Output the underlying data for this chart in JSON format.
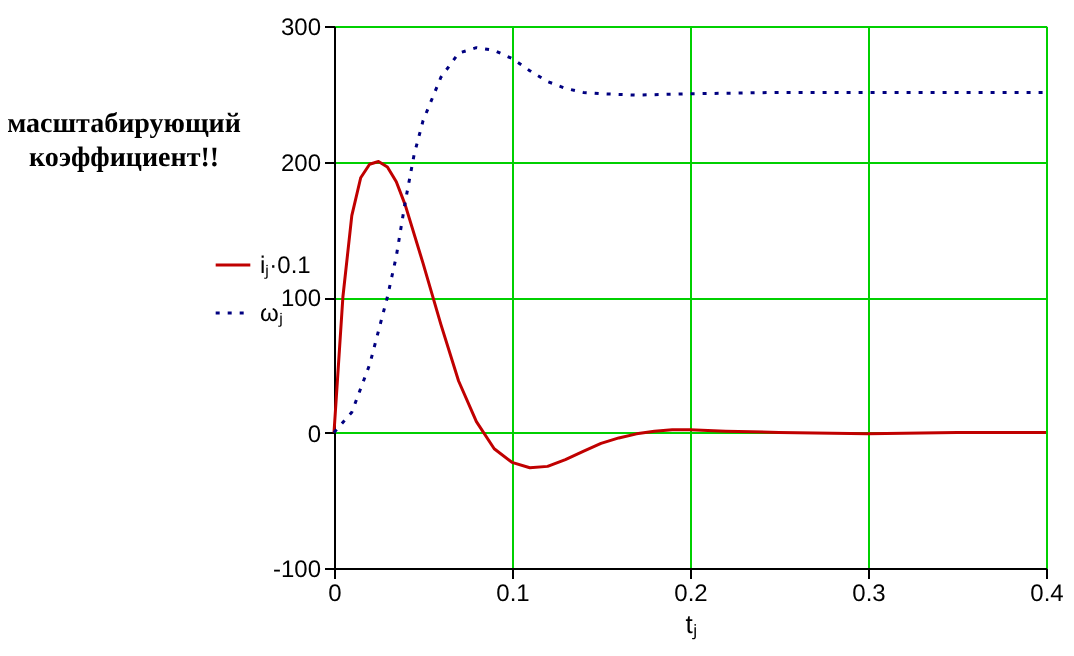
{
  "chart_data": {
    "type": "line",
    "xlabel": "tⱼ",
    "xlim": [
      0,
      0.4
    ],
    "xticks": [
      0,
      0.1,
      0.2,
      0.3,
      0.4
    ],
    "ylim": [
      -100,
      300
    ],
    "yticks": [
      -100,
      0,
      100,
      200,
      300
    ],
    "grid": true,
    "legend": "left",
    "marker": "none",
    "annotations": [
      "масштабирующий коэффициент!!"
    ],
    "series": [
      {
        "name": "iⱼ·0.1",
        "color": "#c00000",
        "line_style": "solid",
        "x": [
          0,
          0.002,
          0.005,
          0.01,
          0.015,
          0.02,
          0.025,
          0.03,
          0.035,
          0.04,
          0.05,
          0.06,
          0.07,
          0.08,
          0.09,
          0.1,
          0.11,
          0.12,
          0.13,
          0.14,
          0.15,
          0.16,
          0.17,
          0.18,
          0.19,
          0.2,
          0.22,
          0.25,
          0.3,
          0.35,
          0.4
        ],
        "values": [
          0,
          40,
          100,
          160,
          188,
          198,
          200,
          196,
          185,
          168,
          125,
          80,
          38,
          8,
          -12,
          -22,
          -26,
          -25,
          -20,
          -14,
          -8,
          -4,
          -1,
          1,
          2,
          2,
          1,
          0,
          -1,
          0,
          0
        ]
      },
      {
        "name": "ωⱼ",
        "color": "#000080",
        "line_style": "dotted",
        "x": [
          0,
          0.01,
          0.02,
          0.03,
          0.035,
          0.04,
          0.045,
          0.05,
          0.06,
          0.07,
          0.08,
          0.09,
          0.1,
          0.11,
          0.12,
          0.13,
          0.14,
          0.15,
          0.17,
          0.2,
          0.25,
          0.3,
          0.4
        ],
        "values": [
          0,
          15,
          50,
          100,
          130,
          170,
          205,
          230,
          262,
          280,
          284,
          282,
          276,
          267,
          259,
          254,
          251,
          250,
          249,
          250,
          251,
          251,
          251
        ]
      }
    ]
  }
}
